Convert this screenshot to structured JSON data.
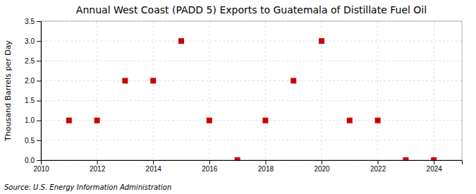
{
  "chart_data": {
    "type": "scatter",
    "title": "Annual West Coast (PADD 5) Exports to Guatemala of Distillate Fuel Oil",
    "ylabel": "Thousand Barrels per Day",
    "source": "Source: U.S. Energy Information Administration",
    "x": [
      2011,
      2012,
      2013,
      2014,
      2015,
      2016,
      2017,
      2018,
      2019,
      2020,
      2021,
      2022,
      2023,
      2024
    ],
    "values": [
      1.0,
      1.0,
      2.0,
      2.0,
      3.0,
      1.0,
      0.0,
      1.0,
      2.0,
      3.0,
      1.0,
      1.0,
      0.0,
      0.0
    ],
    "color": "#cc0000",
    "marker": "square",
    "xlim": [
      2010,
      2025
    ],
    "ylim": [
      0.0,
      3.5
    ],
    "xticks": [
      2010,
      2012,
      2014,
      2016,
      2018,
      2020,
      2022,
      2024
    ],
    "yticks": [
      {
        "value": 0,
        "label": "0.0"
      },
      0.5,
      {
        "value": 1,
        "label": "1.0"
      },
      1.5,
      {
        "value": 2,
        "label": "2.0"
      },
      2.5,
      {
        "value": 3,
        "label": "3.0"
      },
      3.5
    ],
    "grid": true
  }
}
